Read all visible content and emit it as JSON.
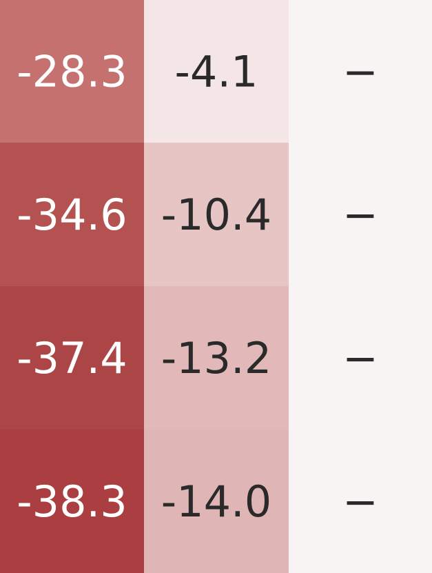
{
  "chart_data": {
    "type": "heatmap",
    "rows": 4,
    "columns": 3,
    "cells": [
      [
        {
          "value": -28.3,
          "label": "-28.3",
          "color": "#c57170"
        },
        {
          "value": -4.1,
          "label": "-4.1",
          "color": "#f4e6e6"
        },
        {
          "value": null,
          "label": "−",
          "color": "#f8f4f4"
        }
      ],
      [
        {
          "value": -34.6,
          "label": "-34.6",
          "color": "#b45251"
        },
        {
          "value": -10.4,
          "label": "-10.4",
          "color": "#e7c5c4"
        },
        {
          "value": null,
          "label": "−",
          "color": "#f8f4f4"
        }
      ],
      [
        {
          "value": -37.4,
          "label": "-37.4",
          "color": "#ac4546"
        },
        {
          "value": -13.2,
          "label": "-13.2",
          "color": "#e2b9b8"
        },
        {
          "value": null,
          "label": "−",
          "color": "#f8f4f4"
        }
      ],
      [
        {
          "value": -38.3,
          "label": "-38.3",
          "color": "#ab3e41"
        },
        {
          "value": -14.0,
          "label": "-14.0",
          "color": "#e0b5b5"
        },
        {
          "value": null,
          "label": "−",
          "color": "#f8f4f4"
        }
      ]
    ],
    "text_colors": {
      "dark_cell": "#ffffff",
      "light_cell": "#2a2a2a"
    }
  }
}
